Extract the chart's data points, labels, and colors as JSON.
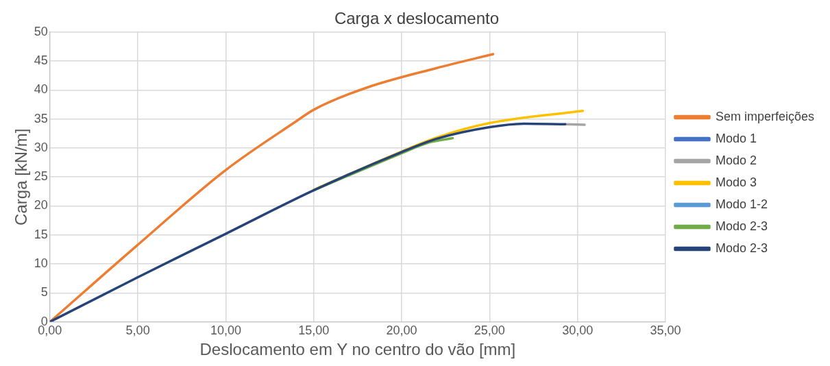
{
  "chart_data": {
    "type": "line",
    "title": "Carga x deslocamento",
    "xlabel": "Deslocamento em Y no centro do vão [mm]",
    "ylabel": "Carga [kN/m]",
    "xlim": [
      0,
      35
    ],
    "xticks": [
      {
        "value": 0,
        "label": "0,00"
      },
      {
        "value": 5,
        "label": "5,00"
      },
      {
        "value": 10,
        "label": "10,00"
      },
      {
        "value": 15,
        "label": "15,00"
      },
      {
        "value": 20,
        "label": "20,00"
      },
      {
        "value": 25,
        "label": "25,00"
      },
      {
        "value": 30,
        "label": "30,00"
      },
      {
        "value": 35,
        "label": "35,00"
      }
    ],
    "ylim": [
      0,
      50
    ],
    "yticks": [
      0,
      5,
      10,
      15,
      20,
      25,
      30,
      35,
      40,
      45,
      50
    ],
    "grid": true,
    "legend": "right",
    "marker": "none",
    "line_style": "solid",
    "series": [
      {
        "name": "Sem imperfeições",
        "color": "#ed7d31",
        "x": [
          0,
          5,
          10,
          14,
          15,
          18,
          22,
          25.2
        ],
        "values": [
          0,
          13.3,
          26.2,
          34.6,
          36.6,
          40.4,
          43.8,
          46.2
        ]
      },
      {
        "name": "Modo 1",
        "color": "#4472c4"
      },
      {
        "name": "Modo 2",
        "color": "#a5a5a5",
        "x": [
          29.3,
          30.4
        ],
        "values": [
          34.1,
          34
        ]
      },
      {
        "name": "Modo 3",
        "color": "#ffc000",
        "x": [
          15,
          20,
          22,
          25,
          30.3
        ],
        "values": [
          22.8,
          29.4,
          31.8,
          34.3,
          36.4
        ]
      },
      {
        "name": "Modo 1-2",
        "color": "#5b9bd5"
      },
      {
        "name": "Modo 2-3",
        "color": "#70ad47",
        "x": [
          15,
          20,
          21.5,
          22.9
        ],
        "values": [
          22.7,
          29.1,
          30.9,
          31.7
        ]
      },
      {
        "name": "Modo 2-3",
        "color": "#264478",
        "x": [
          0,
          5,
          10,
          15,
          20,
          22,
          25,
          27,
          29.3
        ],
        "values": [
          0,
          7.7,
          15.2,
          22.7,
          29.3,
          31.6,
          33.6,
          34.2,
          34.1
        ]
      }
    ]
  }
}
